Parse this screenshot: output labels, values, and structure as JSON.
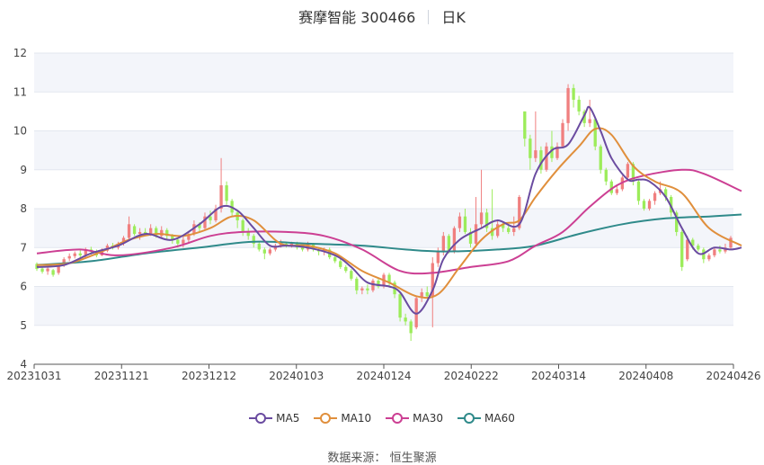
{
  "title": {
    "name_code": "赛摩智能 300466",
    "period": "日K"
  },
  "source": {
    "label": "数据来源：",
    "name": "恒生聚源"
  },
  "colors": {
    "up": "#f07f7f",
    "down": "#9cec5a",
    "ma5": "#6a4ba0",
    "ma10": "#e08f3c",
    "ma30": "#cc3f93",
    "ma60": "#2f8a8a",
    "grid": "#e3e7ef",
    "band": "#f3f5fa"
  },
  "chart_data": {
    "type": "candlestick",
    "title": "赛摩智能 300466 日K",
    "ylim": [
      4,
      12
    ],
    "yticks": [
      4,
      5,
      6,
      7,
      8,
      9,
      10,
      11,
      12
    ],
    "x_tick_labels": [
      "20231031",
      "20231121",
      "20231212",
      "20240103",
      "20240124",
      "20240222",
      "20240314",
      "20240408",
      "20240426"
    ],
    "legend": [
      "MA5",
      "MA10",
      "MA30",
      "MA60"
    ],
    "candles": [
      [
        6.58,
        6.45,
        6.62,
        6.4
      ],
      [
        6.46,
        6.38,
        6.5,
        6.33
      ],
      [
        6.39,
        6.46,
        6.52,
        6.3
      ],
      [
        6.42,
        6.3,
        6.45,
        6.25
      ],
      [
        6.35,
        6.55,
        6.6,
        6.3
      ],
      [
        6.55,
        6.7,
        6.75,
        6.5
      ],
      [
        6.72,
        6.78,
        6.85,
        6.65
      ],
      [
        6.78,
        6.85,
        6.9,
        6.72
      ],
      [
        6.85,
        6.8,
        6.95,
        6.75
      ],
      [
        6.8,
        6.95,
        7.0,
        6.75
      ],
      [
        6.95,
        6.9,
        7.02,
        6.82
      ],
      [
        6.88,
        6.8,
        6.95,
        6.75
      ],
      [
        6.8,
        6.92,
        6.98,
        6.78
      ],
      [
        6.92,
        7.05,
        7.1,
        6.88
      ],
      [
        7.05,
        7.0,
        7.12,
        6.95
      ],
      [
        7.0,
        7.1,
        7.15,
        6.95
      ],
      [
        7.1,
        7.25,
        7.3,
        7.05
      ],
      [
        7.25,
        7.6,
        7.8,
        7.2
      ],
      [
        7.55,
        7.35,
        7.6,
        7.3
      ],
      [
        7.35,
        7.4,
        7.5,
        7.2
      ],
      [
        7.4,
        7.35,
        7.5,
        7.3
      ],
      [
        7.35,
        7.5,
        7.6,
        7.3
      ],
      [
        7.5,
        7.3,
        7.55,
        7.25
      ],
      [
        7.3,
        7.45,
        7.55,
        7.25
      ],
      [
        7.45,
        7.3,
        7.5,
        7.2
      ],
      [
        7.3,
        7.2,
        7.35,
        7.1
      ],
      [
        7.2,
        7.1,
        7.25,
        7.0
      ],
      [
        7.1,
        7.2,
        7.3,
        7.0
      ],
      [
        7.2,
        7.35,
        7.4,
        7.1
      ],
      [
        7.35,
        7.6,
        7.7,
        7.3
      ],
      [
        7.6,
        7.5,
        7.65,
        7.4
      ],
      [
        7.5,
        7.8,
        7.9,
        7.45
      ],
      [
        7.8,
        7.7,
        7.95,
        7.6
      ],
      [
        7.7,
        8.0,
        8.1,
        7.65
      ],
      [
        8.0,
        8.6,
        9.3,
        7.9
      ],
      [
        8.6,
        8.2,
        8.7,
        8.1
      ],
      [
        8.2,
        7.9,
        8.25,
        7.8
      ],
      [
        7.9,
        7.7,
        7.95,
        7.5
      ],
      [
        7.7,
        7.4,
        7.75,
        7.3
      ],
      [
        7.4,
        7.3,
        7.5,
        7.2
      ],
      [
        7.3,
        7.1,
        7.35,
        7.0
      ],
      [
        7.1,
        6.95,
        7.15,
        6.9
      ],
      [
        6.95,
        6.85,
        7.0,
        6.7
      ],
      [
        6.85,
        6.95,
        7.0,
        6.8
      ],
      [
        6.95,
        7.05,
        7.1,
        6.9
      ],
      [
        7.05,
        7.1,
        7.2,
        7.0
      ],
      [
        7.1,
        7.05,
        7.15,
        7.0
      ],
      [
        7.05,
        7.1,
        7.15,
        7.0
      ],
      [
        7.1,
        7.0,
        7.15,
        6.95
      ],
      [
        7.0,
        6.95,
        7.05,
        6.9
      ],
      [
        6.95,
        7.1,
        7.15,
        6.9
      ],
      [
        7.1,
        6.95,
        7.12,
        6.9
      ],
      [
        6.95,
        6.9,
        7.0,
        6.8
      ],
      [
        6.9,
        6.95,
        7.0,
        6.8
      ],
      [
        6.95,
        6.75,
        7.0,
        6.7
      ],
      [
        6.75,
        6.65,
        6.8,
        6.6
      ],
      [
        6.65,
        6.5,
        6.7,
        6.45
      ],
      [
        6.5,
        6.4,
        6.55,
        6.35
      ],
      [
        6.4,
        6.2,
        6.45,
        6.15
      ],
      [
        6.2,
        5.9,
        6.25,
        5.8
      ],
      [
        5.9,
        5.95,
        6.0,
        5.8
      ],
      [
        5.95,
        5.9,
        6.05,
        5.8
      ],
      [
        5.9,
        6.15,
        6.2,
        5.85
      ],
      [
        6.15,
        6.0,
        6.2,
        5.95
      ],
      [
        6.0,
        6.3,
        6.35,
        5.95
      ],
      [
        6.3,
        6.1,
        6.35,
        6.0
      ],
      [
        6.1,
        5.8,
        6.15,
        5.7
      ],
      [
        5.8,
        5.2,
        5.85,
        5.1
      ],
      [
        5.2,
        5.1,
        5.3,
        5.0
      ],
      [
        5.1,
        4.8,
        5.15,
        4.6
      ],
      [
        4.95,
        5.7,
        5.75,
        4.9
      ],
      [
        5.7,
        5.85,
        5.95,
        5.6
      ],
      [
        5.85,
        5.75,
        6.0,
        5.7
      ],
      [
        5.75,
        6.6,
        6.75,
        4.95
      ],
      [
        6.6,
        6.9,
        7.0,
        6.5
      ],
      [
        6.9,
        7.3,
        7.4,
        6.8
      ],
      [
        7.3,
        6.9,
        7.35,
        6.85
      ],
      [
        6.9,
        7.5,
        7.55,
        6.85
      ],
      [
        7.5,
        7.8,
        7.9,
        7.4
      ],
      [
        7.8,
        7.4,
        8.0,
        7.35
      ],
      [
        7.4,
        7.1,
        7.5,
        7.0
      ],
      [
        7.1,
        7.6,
        8.3,
        7.0
      ],
      [
        7.6,
        7.9,
        9.0,
        7.5
      ],
      [
        7.9,
        7.5,
        8.0,
        7.4
      ],
      [
        7.5,
        7.3,
        8.5,
        7.2
      ],
      [
        7.3,
        7.6,
        7.7,
        7.25
      ],
      [
        7.6,
        7.5,
        7.65,
        7.4
      ],
      [
        7.5,
        7.4,
        7.6,
        7.35
      ],
      [
        7.4,
        7.5,
        7.8,
        7.3
      ],
      [
        7.5,
        8.3,
        8.35,
        7.45
      ],
      [
        10.5,
        9.8,
        10.5,
        9.6
      ],
      [
        9.8,
        9.3,
        9.9,
        9.0
      ],
      [
        9.3,
        9.5,
        10.5,
        9.2
      ],
      [
        9.5,
        9.0,
        9.6,
        8.9
      ],
      [
        9.0,
        9.6,
        9.7,
        8.95
      ],
      [
        9.6,
        9.3,
        10.0,
        9.2
      ],
      [
        9.3,
        9.6,
        9.7,
        9.25
      ],
      [
        9.6,
        10.2,
        10.3,
        9.55
      ],
      [
        10.2,
        11.1,
        11.2,
        10.0
      ],
      [
        11.1,
        10.8,
        11.2,
        10.6
      ],
      [
        10.8,
        10.5,
        10.9,
        10.4
      ],
      [
        10.5,
        10.2,
        10.55,
        10.1
      ],
      [
        10.2,
        10.3,
        10.8,
        10.1
      ],
      [
        10.3,
        9.6,
        10.35,
        9.5
      ],
      [
        9.6,
        9.0,
        9.65,
        8.9
      ],
      [
        9.0,
        8.7,
        9.05,
        8.6
      ],
      [
        8.7,
        8.4,
        8.75,
        8.35
      ],
      [
        8.4,
        8.5,
        8.6,
        8.35
      ],
      [
        8.5,
        8.8,
        8.85,
        8.45
      ],
      [
        8.8,
        9.15,
        9.2,
        8.75
      ],
      [
        9.15,
        8.7,
        9.2,
        8.6
      ],
      [
        8.7,
        8.2,
        8.75,
        8.1
      ],
      [
        8.2,
        8.0,
        8.25,
        7.95
      ],
      [
        8.0,
        8.2,
        8.25,
        7.95
      ],
      [
        8.2,
        8.4,
        8.45,
        8.1
      ],
      [
        8.4,
        8.5,
        8.7,
        8.35
      ],
      [
        8.5,
        8.3,
        8.55,
        8.2
      ],
      [
        8.3,
        7.9,
        8.35,
        7.8
      ],
      [
        7.9,
        7.4,
        7.95,
        7.3
      ],
      [
        7.4,
        6.5,
        7.45,
        6.4
      ],
      [
        6.7,
        7.2,
        7.3,
        6.65
      ],
      [
        7.2,
        7.05,
        7.25,
        6.95
      ],
      [
        7.05,
        6.95,
        7.1,
        6.9
      ],
      [
        6.95,
        6.7,
        7.0,
        6.6
      ],
      [
        6.7,
        6.8,
        6.85,
        6.65
      ],
      [
        6.8,
        6.95,
        7.0,
        6.75
      ],
      [
        6.95,
        6.9,
        7.05,
        6.85
      ],
      [
        6.9,
        7.0,
        7.1,
        6.85
      ],
      [
        7.0,
        7.25,
        7.3,
        6.95
      ]
    ],
    "ma": {
      "MA5": [
        [
          0,
          6.5
        ],
        [
          5,
          6.55
        ],
        [
          10,
          6.85
        ],
        [
          15,
          7.05
        ],
        [
          20,
          7.35
        ],
        [
          25,
          7.2
        ],
        [
          30,
          7.6
        ],
        [
          34,
          8.05
        ],
        [
          37,
          7.95
        ],
        [
          40,
          7.5
        ],
        [
          43,
          7.05
        ],
        [
          46,
          7.05
        ],
        [
          50,
          7.0
        ],
        [
          55,
          6.8
        ],
        [
          58,
          6.5
        ],
        [
          61,
          6.1
        ],
        [
          65,
          6.0
        ],
        [
          67,
          5.85
        ],
        [
          70,
          5.3
        ],
        [
          73,
          5.9
        ],
        [
          75,
          6.7
        ],
        [
          78,
          7.2
        ],
        [
          82,
          7.5
        ],
        [
          85,
          7.7
        ],
        [
          89,
          7.6
        ],
        [
          92,
          8.9
        ],
        [
          95,
          9.5
        ],
        [
          98,
          9.65
        ],
        [
          101,
          10.4
        ],
        [
          102,
          10.6
        ],
        [
          104,
          10.0
        ],
        [
          106,
          9.3
        ],
        [
          109,
          8.75
        ],
        [
          111,
          8.75
        ],
        [
          113,
          8.7
        ],
        [
          116,
          8.3
        ],
        [
          119,
          7.5
        ],
        [
          122,
          6.85
        ],
        [
          125,
          7.0
        ],
        [
          128,
          6.95
        ],
        [
          130,
          7.0
        ]
      ],
      "MA10": [
        [
          0,
          6.55
        ],
        [
          6,
          6.6
        ],
        [
          12,
          6.9
        ],
        [
          17,
          7.2
        ],
        [
          22,
          7.35
        ],
        [
          27,
          7.3
        ],
        [
          32,
          7.5
        ],
        [
          36,
          7.8
        ],
        [
          40,
          7.7
        ],
        [
          45,
          7.1
        ],
        [
          50,
          7.05
        ],
        [
          55,
          6.85
        ],
        [
          60,
          6.4
        ],
        [
          65,
          6.1
        ],
        [
          70,
          5.75
        ],
        [
          74,
          5.8
        ],
        [
          78,
          6.5
        ],
        [
          82,
          7.2
        ],
        [
          86,
          7.6
        ],
        [
          89,
          7.7
        ],
        [
          92,
          8.3
        ],
        [
          96,
          9.0
        ],
        [
          100,
          9.6
        ],
        [
          103,
          10.05
        ],
        [
          106,
          9.9
        ],
        [
          110,
          9.1
        ],
        [
          114,
          8.7
        ],
        [
          119,
          8.4
        ],
        [
          124,
          7.5
        ],
        [
          130,
          7.05
        ]
      ],
      "MA30": [
        [
          0,
          6.85
        ],
        [
          8,
          6.95
        ],
        [
          15,
          6.8
        ],
        [
          25,
          7.0
        ],
        [
          32,
          7.3
        ],
        [
          38,
          7.4
        ],
        [
          46,
          7.4
        ],
        [
          53,
          7.3
        ],
        [
          60,
          6.95
        ],
        [
          67,
          6.4
        ],
        [
          73,
          6.35
        ],
        [
          80,
          6.5
        ],
        [
          87,
          6.65
        ],
        [
          92,
          7.05
        ],
        [
          97,
          7.4
        ],
        [
          102,
          8.05
        ],
        [
          107,
          8.6
        ],
        [
          112,
          8.85
        ],
        [
          119,
          9.0
        ],
        [
          123,
          8.9
        ],
        [
          130,
          8.45
        ]
      ],
      "MA60": [
        [
          0,
          6.55
        ],
        [
          10,
          6.65
        ],
        [
          20,
          6.85
        ],
        [
          30,
          7.0
        ],
        [
          40,
          7.15
        ],
        [
          50,
          7.1
        ],
        [
          60,
          7.05
        ],
        [
          68,
          6.95
        ],
        [
          75,
          6.9
        ],
        [
          85,
          6.95
        ],
        [
          92,
          7.05
        ],
        [
          100,
          7.35
        ],
        [
          108,
          7.6
        ],
        [
          116,
          7.75
        ],
        [
          124,
          7.8
        ],
        [
          130,
          7.85
        ]
      ]
    }
  }
}
